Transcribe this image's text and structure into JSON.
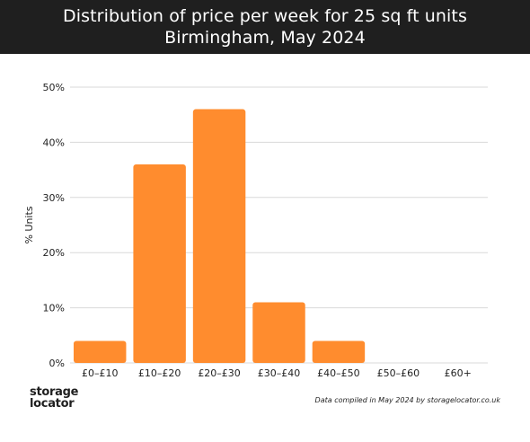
{
  "header": {
    "title_line1": "Distribution of price per week for 25 sq ft units",
    "title_line2": "Birmingham, May 2024",
    "background": "#1f1f1f"
  },
  "chart_data": {
    "type": "bar",
    "title": "Distribution of price per week for 25 sq ft units",
    "subtitle": "Birmingham, May 2024",
    "categories": [
      "£0–£10",
      "£10–£20",
      "£20–£30",
      "£30–£40",
      "£40–£50",
      "£50–£60",
      "£60+"
    ],
    "values": [
      4,
      36,
      46,
      11,
      4,
      0,
      0
    ],
    "ylabel": "% Units",
    "xlabel": "",
    "ylim": [
      0,
      50
    ],
    "yticks": [
      "0%",
      "10%",
      "20%",
      "30%",
      "40%",
      "50%"
    ],
    "ytick_values": [
      0,
      10,
      20,
      30,
      40,
      50
    ],
    "grid": true,
    "bar_color": "#ff8c2e"
  },
  "footer": {
    "logo_line1": "storage",
    "logo_line2": "locator",
    "source_note": "Data compiled in May 2024 by storagelocator.co.uk"
  }
}
